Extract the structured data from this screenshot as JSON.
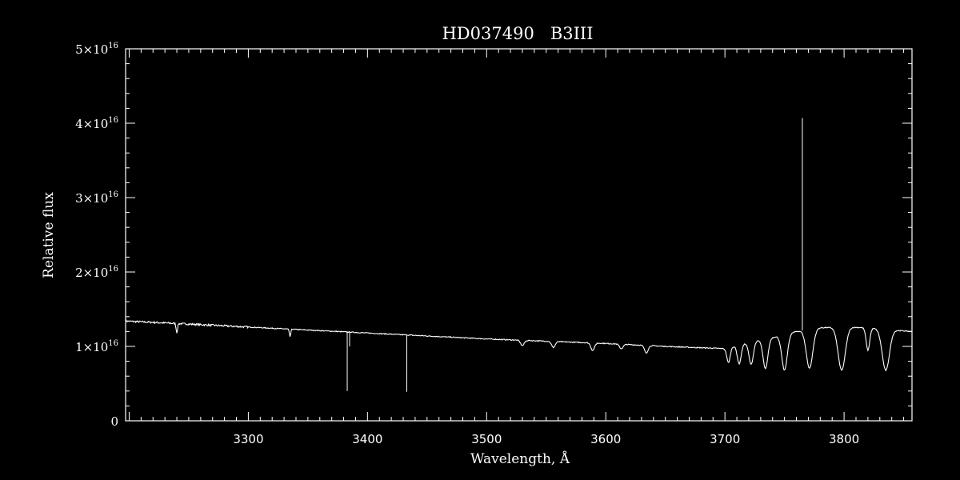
{
  "chart_data": {
    "type": "line",
    "title": "HD037490   B3III",
    "xlabel": "Wavelength, Å",
    "ylabel": "Relative flux",
    "xlim": [
      3197,
      3857
    ],
    "ylim": [
      0,
      5e+16
    ],
    "xticks": [
      {
        "value": 3300,
        "label": "3300"
      },
      {
        "value": 3400,
        "label": "3400"
      },
      {
        "value": 3500,
        "label": "3500"
      },
      {
        "value": 3600,
        "label": "3600"
      },
      {
        "value": 3700,
        "label": "3700"
      },
      {
        "value": 3800,
        "label": "3800"
      }
    ],
    "yticks": [
      {
        "value": 0,
        "mantissa": "0",
        "exponent": ""
      },
      {
        "value": 1e+16,
        "mantissa": "1×10",
        "exponent": "16"
      },
      {
        "value": 2e+16,
        "mantissa": "2×10",
        "exponent": "16"
      },
      {
        "value": 3e+16,
        "mantissa": "3×10",
        "exponent": "16"
      },
      {
        "value": 4e+16,
        "mantissa": "4×10",
        "exponent": "16"
      },
      {
        "value": 5e+16,
        "mantissa": "5×10",
        "exponent": "16"
      }
    ],
    "series": [
      {
        "continuum": [
          [
            3197,
            1.34e+16
          ],
          [
            3250,
            1.3e+16
          ],
          [
            3300,
            1.26e+16
          ],
          [
            3350,
            1.22e+16
          ],
          [
            3400,
            1.18e+16
          ],
          [
            3450,
            1.14e+16
          ],
          [
            3500,
            1.1e+16
          ],
          [
            3550,
            1.07e+16
          ],
          [
            3600,
            1.04e+16
          ],
          [
            3650,
            1e+16
          ],
          [
            3700,
            9700000000000000.0
          ],
          [
            3720,
            1.05e+16
          ],
          [
            3740,
            1.12e+16
          ],
          [
            3760,
            1.2e+16
          ],
          [
            3780,
            1.25e+16
          ],
          [
            3800,
            1.26e+16
          ],
          [
            3820,
            1.25e+16
          ],
          [
            3840,
            1.22e+16
          ],
          [
            3857,
            1.2e+16
          ]
        ],
        "absorption_lines": [
          [
            3240,
            1200000000000000.0,
            0.6
          ],
          [
            3335,
            1000000000000000.0,
            0.6
          ],
          [
            3530,
            700000000000000.0,
            1.5
          ],
          [
            3556,
            800000000000000.0,
            1.5
          ],
          [
            3589,
            1000000000000000.0,
            1.5
          ],
          [
            3613,
            600000000000000.0,
            1.5
          ],
          [
            3634,
            1000000000000000.0,
            1.5
          ],
          [
            3703,
            2000000000000000.0,
            1.4
          ],
          [
            3712,
            2500000000000000.0,
            1.6
          ],
          [
            3722,
            3000000000000000.0,
            1.8
          ],
          [
            3734,
            4000000000000000.0,
            2.0
          ],
          [
            3750,
            4800000000000000.0,
            2.3
          ],
          [
            3771,
            5200000000000000.0,
            2.7
          ],
          [
            3798,
            5800000000000000.0,
            3.0
          ],
          [
            3820,
            3000000000000000.0,
            1.5
          ],
          [
            3835,
            5500000000000000.0,
            3.0
          ]
        ],
        "spikes": [
          [
            3383,
            4000000000000000.0
          ],
          [
            3385,
            1e+16
          ],
          [
            3433,
            3900000000000000.0
          ],
          [
            3765,
            4.07e+16
          ]
        ]
      }
    ],
    "colors": {
      "background": "#000000",
      "foreground": "#ffffff"
    }
  }
}
